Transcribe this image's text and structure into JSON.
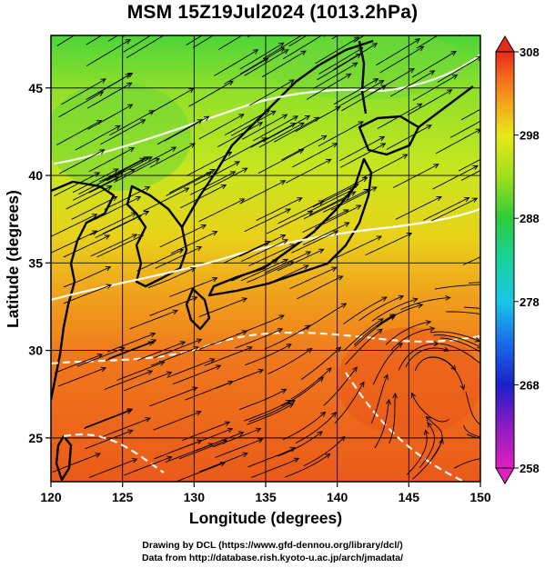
{
  "title": "MSM 15Z19Jul2024 (1013.2hPa)",
  "map": {
    "lon_range": [
      120,
      150
    ],
    "lat_range": [
      22.5,
      48
    ],
    "xlabel": "Longitude (degrees)",
    "ylabel": "Latitude  (degrees)",
    "xticks": [
      120,
      125,
      130,
      135,
      140,
      145,
      150
    ],
    "yticks": [
      25,
      30,
      35,
      40,
      45
    ],
    "field": "temperature with wind streamlines",
    "grid": true
  },
  "colorbar": {
    "ticks": [
      258,
      268,
      278,
      288,
      298,
      308
    ],
    "min": 258,
    "max": 308,
    "colors": [
      "#e020c0",
      "#8c1cc0",
      "#1a20c8",
      "#1a6ce8",
      "#19c6e8",
      "#19d19a",
      "#2ecb3a",
      "#9fe01c",
      "#e8e81a",
      "#f2a21c",
      "#f26a1c",
      "#e82a1a"
    ]
  },
  "credits": {
    "line1": "Drawing by DCL (https://www.gfd-dennou.org/library/dcl/)",
    "line2": "Data from http://database.rish.kyoto-u.ac.jp/arch/jmadata/"
  }
}
